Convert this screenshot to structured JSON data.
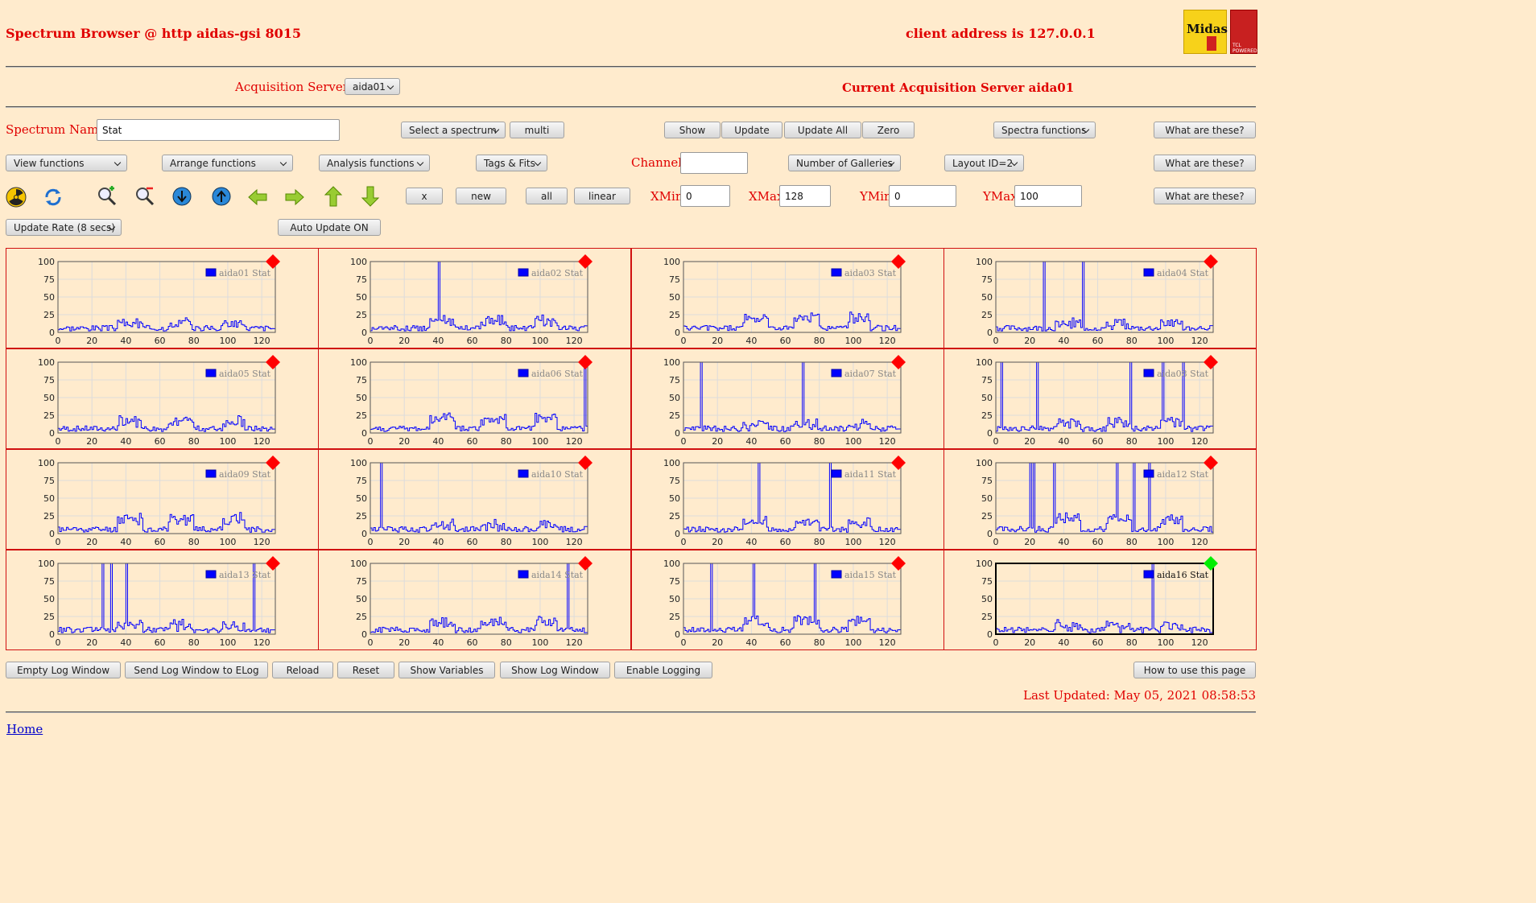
{
  "header": {
    "title": "Spectrum Browser @ http aidas-gsi 8015",
    "client": "client address is 127.0.0.1"
  },
  "acq": {
    "label": "Acquisition Servers",
    "selected": "aida01",
    "current": "Current Acquisition Server aida01"
  },
  "spectrum": {
    "label": "Spectrum Name:",
    "value": "Stat",
    "select": "Select a spectrum",
    "multi": "multi",
    "show": "Show",
    "update": "Update",
    "update_all": "Update All",
    "zero": "Zero",
    "spectra_functions": "Spectra functions",
    "what": "What are these?"
  },
  "row2": {
    "view": "View functions",
    "arrange": "Arrange functions",
    "analysis": "Analysis functions",
    "tags": "Tags & Fits",
    "channel_label": "Channel:",
    "galleries": "Number of Galleries",
    "layout": "Layout ID=2",
    "what": "What are these?"
  },
  "row3": {
    "x": "x",
    "new": "new",
    "all": "all",
    "linear": "linear",
    "xmin_label": "XMin",
    "xmin": "0",
    "xmax_label": "XMax",
    "xmax": "128",
    "ymin_label": "YMin",
    "ymin": "0",
    "ymax_label": "YMax",
    "ymax": "100",
    "what": "What are these?"
  },
  "row4": {
    "rate": "Update Rate (8 secs)",
    "auto": "Auto Update ON"
  },
  "icons": [
    "radiation-icon",
    "refresh-icon",
    "zoom-in-icon",
    "zoom-out-icon",
    "scroll-down-icon",
    "scroll-up-icon",
    "arrow-left-icon",
    "arrow-right-icon",
    "arrow-up-icon",
    "arrow-down-icon"
  ],
  "colors": {
    "accent": "#e00000",
    "series": "#0000ff",
    "status_error": "#ff0000",
    "status_ok": "#00ee00",
    "background": "#ffebcd"
  },
  "chart_data": {
    "type": "line",
    "xlim": [
      0,
      128
    ],
    "ylim": [
      0,
      100
    ],
    "xticks": [
      0,
      20,
      40,
      60,
      80,
      100,
      120
    ],
    "yticks": [
      0,
      25,
      50,
      75,
      100
    ],
    "grid": true,
    "legend_position": "top-right",
    "panels": [
      {
        "name": "aida01 Stat",
        "status": "error"
      },
      {
        "name": "aida02 Stat",
        "status": "error"
      },
      {
        "name": "aida03 Stat",
        "status": "error"
      },
      {
        "name": "aida04 Stat",
        "status": "error"
      },
      {
        "name": "aida05 Stat",
        "status": "error"
      },
      {
        "name": "aida06 Stat",
        "status": "error"
      },
      {
        "name": "aida07 Stat",
        "status": "error"
      },
      {
        "name": "aida08 Stat",
        "status": "error"
      },
      {
        "name": "aida09 Stat",
        "status": "error"
      },
      {
        "name": "aida10 Stat",
        "status": "error"
      },
      {
        "name": "aida11 Stat",
        "status": "error"
      },
      {
        "name": "aida12 Stat",
        "status": "error"
      },
      {
        "name": "aida13 Stat",
        "status": "error"
      },
      {
        "name": "aida14 Stat",
        "status": "error"
      },
      {
        "name": "aida15 Stat",
        "status": "error"
      },
      {
        "name": "aida16 Stat",
        "status": "ok"
      }
    ]
  },
  "footer": {
    "empty_log": "Empty Log Window",
    "send_log": "Send Log Window to ELog",
    "reload": "Reload",
    "reset": "Reset",
    "show_vars": "Show Variables",
    "show_log": "Show Log Window",
    "enable_logging": "Enable Logging",
    "howto": "How to use this page",
    "updated": "Last Updated: May 05, 2021 08:58:53",
    "home": "Home"
  },
  "logo": {
    "midas": "Midas",
    "tcl": "TCL POWERED"
  }
}
